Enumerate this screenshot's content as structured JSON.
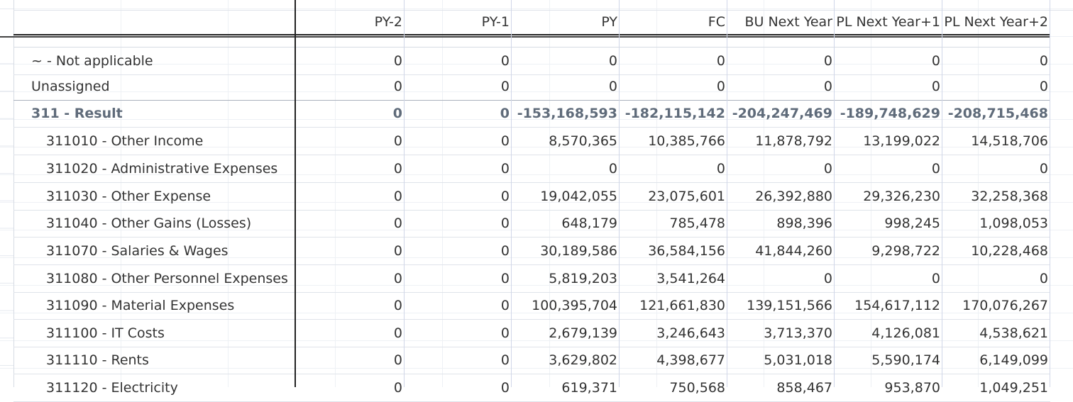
{
  "columns": [
    "PY-2",
    "PY-1",
    "PY",
    "FC",
    "BU Next Year",
    "PL Next Year+1",
    "PL Next Year+2"
  ],
  "rows": [
    {
      "label": "~ - Not applicable",
      "level": 0,
      "bold": false,
      "values": [
        "0",
        "0",
        "0",
        "0",
        "0",
        "0",
        "0"
      ]
    },
    {
      "label": "Unassigned",
      "level": 0,
      "bold": false,
      "values": [
        "0",
        "0",
        "0",
        "0",
        "0",
        "0",
        "0"
      ]
    },
    {
      "label": "311 - Result",
      "level": 0,
      "bold": true,
      "values": [
        "0",
        "0",
        "-153,168,593",
        "-182,115,142",
        "-204,247,469",
        "-189,748,629",
        "-208,715,468"
      ]
    },
    {
      "label": "311010 - Other Income",
      "level": 1,
      "bold": false,
      "values": [
        "0",
        "0",
        "8,570,365",
        "10,385,766",
        "11,878,792",
        "13,199,022",
        "14,518,706"
      ]
    },
    {
      "label": "311020 - Administrative Expenses",
      "level": 1,
      "bold": false,
      "values": [
        "0",
        "0",
        "0",
        "0",
        "0",
        "0",
        "0"
      ]
    },
    {
      "label": "311030 - Other Expense",
      "level": 1,
      "bold": false,
      "values": [
        "0",
        "0",
        "19,042,055",
        "23,075,601",
        "26,392,880",
        "29,326,230",
        "32,258,368"
      ]
    },
    {
      "label": "311040 - Other Gains (Losses)",
      "level": 1,
      "bold": false,
      "values": [
        "0",
        "0",
        "648,179",
        "785,478",
        "898,396",
        "998,245",
        "1,098,053"
      ]
    },
    {
      "label": "311070 - Salaries & Wages",
      "level": 1,
      "bold": false,
      "values": [
        "0",
        "0",
        "30,189,586",
        "36,584,156",
        "41,844,260",
        "9,298,722",
        "10,228,468"
      ]
    },
    {
      "label": "311080 - Other Personnel Expenses",
      "level": 1,
      "bold": false,
      "values": [
        "0",
        "0",
        "5,819,203",
        "3,541,264",
        "0",
        "0",
        "0"
      ]
    },
    {
      "label": "311090 - Material Expenses",
      "level": 1,
      "bold": false,
      "values": [
        "0",
        "0",
        "100,395,704",
        "121,661,830",
        "139,151,566",
        "154,617,112",
        "170,076,267"
      ]
    },
    {
      "label": "311100 - IT Costs",
      "level": 1,
      "bold": false,
      "values": [
        "0",
        "0",
        "2,679,139",
        "3,246,643",
        "3,713,370",
        "4,126,081",
        "4,538,621"
      ]
    },
    {
      "label": "311110 - Rents",
      "level": 1,
      "bold": false,
      "values": [
        "0",
        "0",
        "3,629,802",
        "4,398,677",
        "5,031,018",
        "5,590,174",
        "6,149,099"
      ]
    },
    {
      "label": "311120 - Electricity",
      "level": 1,
      "bold": false,
      "values": [
        "0",
        "0",
        "619,371",
        "750,568",
        "858,467",
        "953,870",
        "1,049,251"
      ]
    }
  ]
}
